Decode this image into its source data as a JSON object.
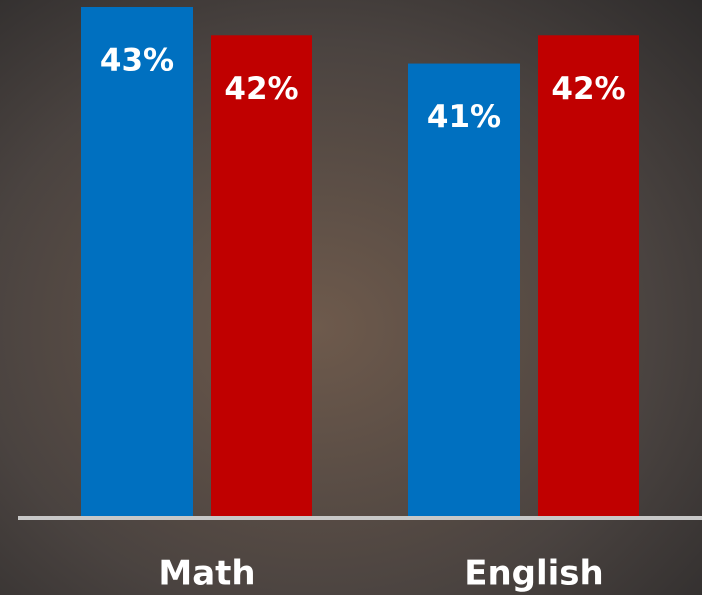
{
  "chart_data": {
    "type": "bar",
    "categories": [
      "Math",
      "English"
    ],
    "series": [
      {
        "color": "#0070c0",
        "values": [
          43,
          41
        ],
        "value_labels": [
          "43%",
          "41%"
        ]
      },
      {
        "color": "#c00000",
        "values": [
          42,
          42
        ],
        "value_labels": [
          "42%",
          "42%"
        ]
      }
    ],
    "ylim": [
      25,
      43
    ]
  }
}
